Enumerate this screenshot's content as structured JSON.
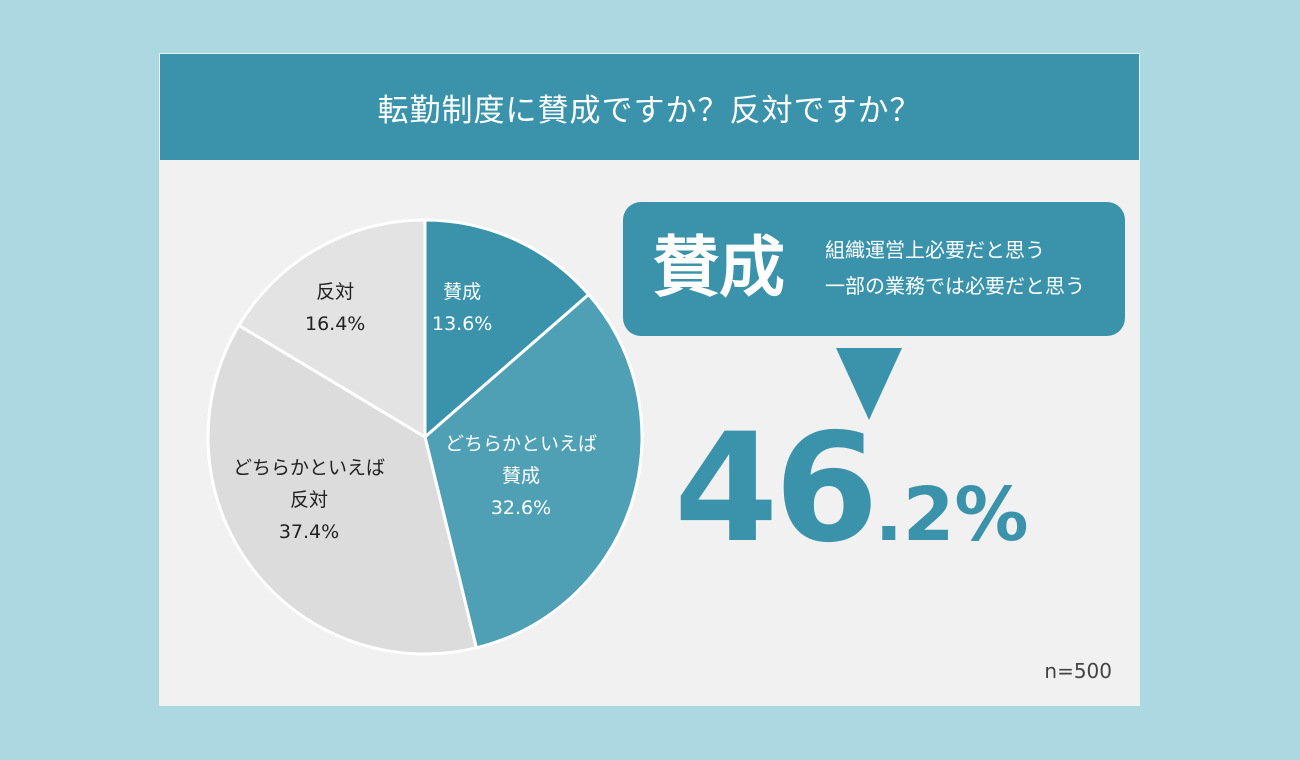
{
  "header": {
    "title": "転勤制度に賛成ですか？反対ですか？"
  },
  "chart_data": {
    "type": "pie",
    "title": "転勤制度に賛成ですか？反対ですか？",
    "categories": [
      "賛成",
      "どちらかといえば賛成",
      "どちらかといえば反対",
      "反対"
    ],
    "values": [
      13.6,
      32.6,
      37.4,
      16.4
    ],
    "unit": "%",
    "start_angle": "12 o'clock, clockwise",
    "colors": [
      "#3a93ab",
      "#4f9fb5",
      "#dcdcdc",
      "#e3e3e3"
    ],
    "sample_size": "n=500",
    "annotation": {
      "label": "賛成",
      "description": [
        "組織運営上必要だと思う",
        "一部の業務では必要だと思う"
      ],
      "combined_value": 46.2
    }
  },
  "pie": {
    "labels": [
      {
        "name": "賛成",
        "lines": [
          "賛成"
        ],
        "value": "13.6%"
      },
      {
        "name": "どちらかといえば賛成",
        "lines": [
          "どちらかといえば",
          "賛成"
        ],
        "value": "32.6%"
      },
      {
        "name": "どちらかといえば反対",
        "lines": [
          "どちらかといえば",
          "反対"
        ],
        "value": "37.4%"
      },
      {
        "name": "反対",
        "lines": [
          "反対"
        ],
        "value": "16.4%"
      }
    ]
  },
  "callout": {
    "big_label": "賛成",
    "line1": "組織運営上必要だと思う",
    "line2": "一部の業務では必要だと思う"
  },
  "result": {
    "integer": "46",
    "decimal": ".2%"
  },
  "footer": {
    "sample": "n=500"
  },
  "colors": {
    "accent": "#3a93ab",
    "accent_light": "#4f9fb5",
    "background": "#acd8e2",
    "card": "#f1f1f1"
  }
}
